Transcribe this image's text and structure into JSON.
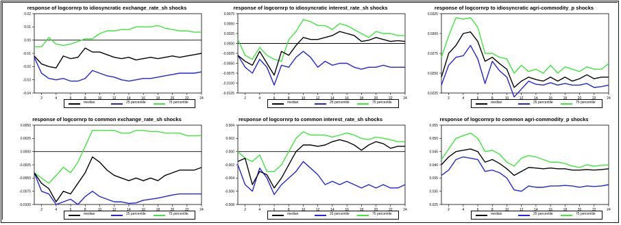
{
  "legend": {
    "median": "median",
    "p25": "25 percentile",
    "p75": "75 percentile"
  },
  "colors": {
    "median": "#000000",
    "p25": "#1f23e6",
    "p75": "#3ce83a",
    "zero_line": "#000000"
  },
  "chart_data": [
    {
      "type": "line",
      "title": "response of logcornrp to idiosyncratic exchange_rate_sh shocks",
      "ylim": [
        -0.04,
        0.02
      ],
      "yticks": [
        -0.04,
        -0.03,
        -0.02,
        -0.01,
        0.0,
        0.01,
        0.02
      ],
      "ytick_labels": [
        "-0.04",
        "-0.03",
        "-0.02",
        "-0.01",
        "0.00",
        "0.01",
        "0.02"
      ],
      "xlim": [
        1,
        24
      ],
      "xticks": [
        2,
        4,
        6,
        8,
        10,
        12,
        14,
        16,
        18,
        20,
        22,
        24
      ],
      "zero_line": true,
      "x": [
        1,
        2,
        3,
        4,
        5,
        6,
        7,
        8,
        9,
        10,
        11,
        12,
        13,
        14,
        15,
        16,
        17,
        18,
        19,
        20,
        21,
        22,
        23,
        24
      ],
      "series": [
        {
          "name": "median",
          "values": [
            -0.012,
            -0.018,
            -0.02,
            -0.021,
            -0.012,
            -0.014,
            -0.013,
            -0.006,
            -0.009,
            -0.009,
            -0.011,
            -0.013,
            -0.014,
            -0.013,
            -0.015,
            -0.014,
            -0.013,
            -0.014,
            -0.013,
            -0.012,
            -0.013,
            -0.012,
            -0.011,
            -0.01
          ]
        },
        {
          "name": "25 percentile",
          "values": [
            -0.013,
            -0.025,
            -0.029,
            -0.03,
            -0.029,
            -0.031,
            -0.031,
            -0.029,
            -0.023,
            -0.025,
            -0.027,
            -0.028,
            -0.03,
            -0.031,
            -0.03,
            -0.029,
            -0.029,
            -0.028,
            -0.027,
            -0.026,
            -0.025,
            -0.025,
            -0.025,
            -0.024
          ]
        },
        {
          "name": "75 percentile",
          "values": [
            -0.005,
            -0.005,
            0.002,
            -0.003,
            -0.004,
            -0.003,
            -0.001,
            0.001,
            0.001,
            0.005,
            0.007,
            0.007,
            0.008,
            0.008,
            0.01,
            0.01,
            0.01,
            0.011,
            0.009,
            0.008,
            0.007,
            0.007,
            0.006,
            0.006
          ]
        }
      ]
    },
    {
      "type": "line",
      "title": "response of logcornrp to idiosyncratic interest_rate_sh shocks",
      "ylim": [
        -0.0125,
        0.0075
      ],
      "yticks": [
        -0.0125,
        -0.01,
        -0.0075,
        -0.005,
        -0.0025,
        0.0,
        0.0025,
        0.005,
        0.0075
      ],
      "ytick_labels": [
        "-0.0125",
        "-0.0100",
        "-0.0075",
        "-0.0050",
        "-0.0025",
        "0.0000",
        "0.0025",
        "0.0050",
        "0.0075"
      ],
      "xlim": [
        1,
        24
      ],
      "xticks": [
        2,
        4,
        6,
        8,
        10,
        12,
        14,
        16,
        18,
        20,
        22,
        24
      ],
      "zero_line": true,
      "x": [
        1,
        2,
        3,
        4,
        5,
        6,
        7,
        8,
        9,
        10,
        11,
        12,
        13,
        14,
        15,
        16,
        17,
        18,
        19,
        20,
        21,
        22,
        23,
        24
      ],
      "series": [
        {
          "name": "median",
          "values": [
            -0.003,
            -0.0045,
            -0.0055,
            -0.002,
            -0.005,
            -0.008,
            -0.002,
            -0.003,
            -0.0005,
            0.0015,
            0.001,
            0.001,
            0.0015,
            0.002,
            0.003,
            0.0025,
            0.002,
            0.0005,
            0.0008,
            0.0015,
            0.001,
            0.0005,
            0.0007,
            0.0005
          ]
        },
        {
          "name": "25 percentile",
          "values": [
            -0.003,
            -0.006,
            -0.0075,
            -0.004,
            -0.006,
            -0.0105,
            -0.0055,
            -0.006,
            -0.0035,
            -0.002,
            -0.0035,
            -0.006,
            -0.0045,
            -0.0055,
            -0.005,
            -0.005,
            -0.006,
            -0.0065,
            -0.006,
            -0.006,
            -0.0055,
            -0.006,
            -0.006,
            -0.006
          ]
        },
        {
          "name": "75 percentile",
          "values": [
            0.001,
            -0.003,
            -0.004,
            -0.001,
            -0.003,
            -0.004,
            -0.0045,
            0.001,
            0.003,
            0.006,
            0.0055,
            0.0045,
            0.0045,
            0.0035,
            0.005,
            0.0045,
            0.0035,
            0.0025,
            0.0015,
            0.003,
            0.0025,
            0.0025,
            0.002,
            0.002
          ]
        }
      ]
    },
    {
      "type": "line",
      "title": "response of logcornrp to idiosyncratic agri-commodity_p shocks",
      "ylim": [
        0.0225,
        0.0325
      ],
      "yticks": [
        0.0225,
        0.025,
        0.0275,
        0.03,
        0.0325
      ],
      "ytick_labels": [
        "0.0225",
        "0.0250",
        "0.0275",
        "0.0300",
        "0.0325"
      ],
      "xlim": [
        1,
        24
      ],
      "xticks": [
        2,
        4,
        6,
        8,
        10,
        12,
        14,
        16,
        18,
        20,
        22,
        24
      ],
      "zero_line": false,
      "x": [
        1,
        2,
        3,
        4,
        5,
        6,
        7,
        8,
        9,
        10,
        11,
        12,
        13,
        14,
        15,
        16,
        17,
        18,
        19,
        20,
        21,
        22,
        23,
        24
      ],
      "series": [
        {
          "name": "median",
          "values": [
            0.0245,
            0.0275,
            0.0285,
            0.03,
            0.0302,
            0.029,
            0.0265,
            0.027,
            0.0262,
            0.0255,
            0.0232,
            0.024,
            0.0245,
            0.0242,
            0.024,
            0.0245,
            0.024,
            0.0245,
            0.024,
            0.0243,
            0.0248,
            0.0243,
            0.0245,
            0.0245
          ]
        },
        {
          "name": "25 percentile",
          "values": [
            0.0235,
            0.026,
            0.027,
            0.0272,
            0.0285,
            0.0268,
            0.0237,
            0.0265,
            0.0253,
            0.0245,
            0.022,
            0.023,
            0.024,
            0.0236,
            0.0235,
            0.0238,
            0.0235,
            0.0237,
            0.0235,
            0.0235,
            0.0237,
            0.0232,
            0.0233,
            0.0235
          ]
        },
        {
          "name": "75 percentile",
          "values": [
            0.027,
            0.0297,
            0.032,
            0.0318,
            0.032,
            0.0308,
            0.0275,
            0.0275,
            0.027,
            0.0268,
            0.025,
            0.026,
            0.0252,
            0.0255,
            0.025,
            0.026,
            0.025,
            0.0258,
            0.0255,
            0.0252,
            0.0258,
            0.0255,
            0.0255,
            0.0262
          ]
        }
      ]
    },
    {
      "type": "line",
      "title": "response of logcornrp to common exchange_rate_sh shocks",
      "ylim": [
        -0.01,
        0.005
      ],
      "yticks": [
        -0.01,
        -0.0075,
        -0.005,
        -0.0025,
        0.0,
        0.0025,
        0.005
      ],
      "ytick_labels": [
        "-0.0100",
        "-0.0075",
        "-0.0050",
        "-0.0025",
        "0.0000",
        "0.0025",
        "0.0050"
      ],
      "xlim": [
        1,
        24
      ],
      "xticks": [
        2,
        4,
        6,
        8,
        10,
        12,
        14,
        16,
        18,
        20,
        22,
        24
      ],
      "zero_line": true,
      "x": [
        1,
        2,
        3,
        4,
        5,
        6,
        7,
        8,
        9,
        10,
        11,
        12,
        13,
        14,
        15,
        16,
        17,
        18,
        19,
        20,
        21,
        22,
        23,
        24
      ],
      "series": [
        {
          "name": "median",
          "values": [
            -0.004,
            -0.006,
            -0.007,
            -0.0095,
            -0.0075,
            -0.008,
            -0.006,
            -0.004,
            -0.001,
            -0.002,
            -0.0035,
            -0.0045,
            -0.005,
            -0.0055,
            -0.005,
            -0.0055,
            -0.005,
            -0.0055,
            -0.0045,
            -0.004,
            -0.0035,
            -0.0035,
            -0.0035,
            -0.003
          ]
        },
        {
          "name": "25 percentile",
          "values": [
            -0.004,
            -0.0075,
            -0.008,
            -0.01,
            -0.0095,
            -0.009,
            -0.01,
            -0.0085,
            -0.0075,
            -0.0085,
            -0.009,
            -0.0095,
            -0.0095,
            -0.0098,
            -0.0097,
            -0.0092,
            -0.009,
            -0.0088,
            -0.0085,
            -0.0082,
            -0.008,
            -0.008,
            -0.008,
            -0.008
          ]
        },
        {
          "name": "75 percentile",
          "values": [
            -0.004,
            -0.005,
            -0.006,
            -0.0045,
            -0.003,
            -0.004,
            -0.002,
            0.001,
            0.004,
            0.004,
            0.004,
            0.004,
            0.0035,
            0.0035,
            0.004,
            0.004,
            0.0038,
            0.0038,
            0.0035,
            0.0035,
            0.0035,
            0.003,
            0.003,
            0.003
          ]
        }
      ]
    },
    {
      "type": "line",
      "title": "response of logcornrp to common interest_rate_sh shocks",
      "ylim": [
        -0.008,
        0.004
      ],
      "yticks": [
        -0.008,
        -0.006,
        -0.004,
        -0.002,
        0.0,
        0.002,
        0.004
      ],
      "ytick_labels": [
        "-0.008",
        "-0.006",
        "-0.004",
        "-0.002",
        "0.000",
        "0.002",
        "0.004"
      ],
      "xlim": [
        1,
        24
      ],
      "xticks": [
        2,
        4,
        6,
        8,
        10,
        12,
        14,
        16,
        18,
        20,
        22,
        24
      ],
      "zero_line": true,
      "x": [
        1,
        2,
        3,
        4,
        5,
        6,
        7,
        8,
        9,
        10,
        11,
        12,
        13,
        14,
        15,
        16,
        17,
        18,
        19,
        20,
        21,
        22,
        23,
        24
      ],
      "series": [
        {
          "name": "median",
          "values": [
            -0.0015,
            -0.001,
            -0.005,
            -0.003,
            -0.0035,
            -0.0055,
            -0.004,
            -0.002,
            0.0,
            0.001,
            0.001,
            0.0008,
            0.001,
            0.0015,
            0.0018,
            0.0015,
            0.001,
            0.0002,
            0.001,
            0.0015,
            0.0012,
            0.0005,
            0.0008,
            0.0008
          ]
        },
        {
          "name": "25 percentile",
          "values": [
            -0.002,
            -0.005,
            -0.006,
            -0.0025,
            -0.004,
            -0.0065,
            -0.005,
            -0.004,
            -0.003,
            -0.0015,
            -0.0025,
            -0.0035,
            -0.005,
            -0.0045,
            -0.005,
            -0.0045,
            -0.005,
            -0.0055,
            -0.005,
            -0.0055,
            -0.005,
            -0.0055,
            -0.0055,
            -0.005
          ]
        },
        {
          "name": "75 percentile",
          "values": [
            0.0,
            -0.001,
            -0.0015,
            -0.0005,
            -0.003,
            -0.003,
            -0.002,
            0.0,
            0.002,
            0.003,
            0.0025,
            0.0025,
            0.0025,
            0.0022,
            0.0025,
            0.0028,
            0.0025,
            0.002,
            0.0018,
            0.0022,
            0.002,
            0.0018,
            0.0015,
            0.0015
          ]
        }
      ]
    },
    {
      "type": "line",
      "title": "response of logcornrp to common agri-commodity_p shocks",
      "ylim": [
        0.025,
        0.055
      ],
      "yticks": [
        0.025,
        0.03,
        0.035,
        0.04,
        0.045,
        0.05,
        0.055
      ],
      "ytick_labels": [
        "0.025",
        "0.030",
        "0.035",
        "0.040",
        "0.045",
        "0.050",
        "0.055"
      ],
      "xlim": [
        1,
        24
      ],
      "xticks": [
        2,
        4,
        6,
        8,
        10,
        12,
        14,
        16,
        18,
        20,
        22,
        24
      ],
      "zero_line": false,
      "x": [
        1,
        2,
        3,
        4,
        5,
        6,
        7,
        8,
        9,
        10,
        11,
        12,
        13,
        14,
        15,
        16,
        17,
        18,
        19,
        20,
        21,
        22,
        23,
        24
      ],
      "series": [
        {
          "name": "median",
          "values": [
            0.04,
            0.043,
            0.045,
            0.0455,
            0.046,
            0.045,
            0.041,
            0.042,
            0.0405,
            0.0385,
            0.036,
            0.0375,
            0.039,
            0.0388,
            0.0385,
            0.0388,
            0.0385,
            0.0385,
            0.038,
            0.038,
            0.0382,
            0.038,
            0.0382,
            0.0385
          ]
        },
        {
          "name": "25 percentile",
          "values": [
            0.036,
            0.038,
            0.042,
            0.043,
            0.0425,
            0.042,
            0.0375,
            0.038,
            0.037,
            0.035,
            0.0305,
            0.03,
            0.032,
            0.0315,
            0.0315,
            0.032,
            0.032,
            0.0322,
            0.032,
            0.0315,
            0.032,
            0.0318,
            0.032,
            0.0325
          ]
        },
        {
          "name": "75 percentile",
          "values": [
            0.042,
            0.046,
            0.05,
            0.051,
            0.052,
            0.05,
            0.045,
            0.0455,
            0.044,
            0.041,
            0.0395,
            0.0425,
            0.0435,
            0.043,
            0.042,
            0.041,
            0.041,
            0.0405,
            0.0395,
            0.039,
            0.04,
            0.0395,
            0.0398,
            0.04
          ]
        }
      ]
    }
  ]
}
